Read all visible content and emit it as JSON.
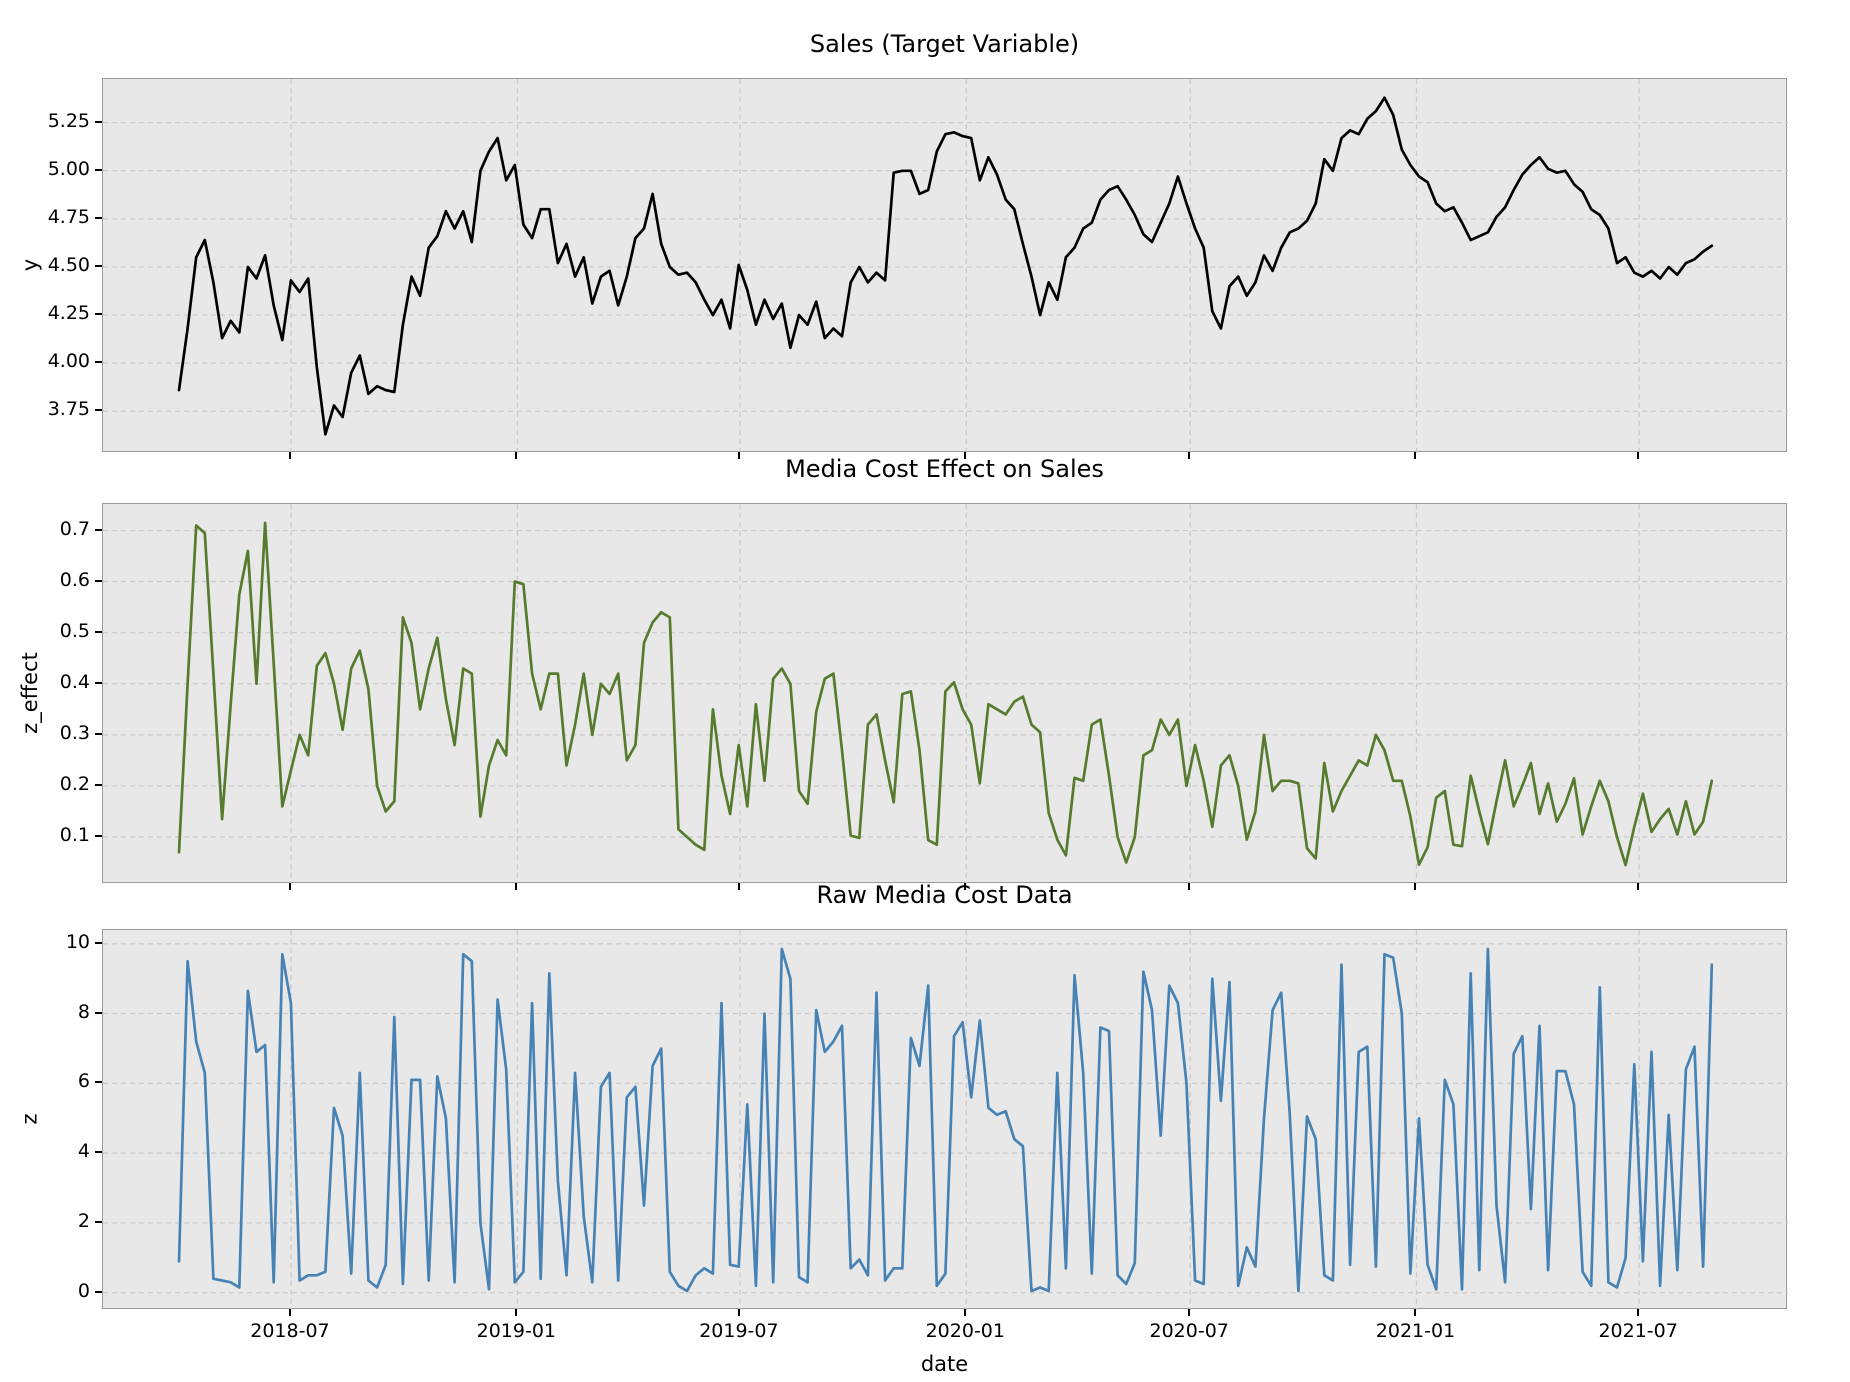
{
  "x_axis": {
    "label": "date",
    "tick_labels": [
      "2018-07",
      "2019-01",
      "2019-07",
      "2020-01",
      "2020-07",
      "2021-01",
      "2021-07"
    ],
    "tick_positions_weeks": [
      13.0,
      39.29,
      65.14,
      91.43,
      117.43,
      143.71,
      169.57
    ],
    "start_date": "2018-04-01",
    "end_date": "2021-08-29",
    "frequency": "weekly",
    "n_points": 179
  },
  "colors": {
    "figure_background": "#ffffff",
    "axes_background": "#e8e8e8",
    "grid": "#c8c8c8",
    "spine": "#9a9a9a",
    "tick": "#000000",
    "text": "#000000"
  },
  "chart_data": [
    {
      "type": "line",
      "name": "sales",
      "title": "Sales (Target Variable)",
      "ylabel": "y",
      "line_color": "#000000",
      "ylim": [
        3.533,
        5.477
      ],
      "yticks": [
        3.75,
        4.0,
        4.25,
        4.5,
        4.75,
        5.0,
        5.25
      ],
      "ytick_labels": [
        "3.75",
        "4.00",
        "4.25",
        "4.50",
        "4.75",
        "5.00",
        "5.25"
      ],
      "grid": true,
      "legend": "none",
      "values": [
        3.86,
        4.18,
        4.55,
        4.64,
        4.42,
        4.13,
        4.22,
        4.16,
        4.5,
        4.44,
        4.56,
        4.3,
        4.12,
        4.43,
        4.37,
        4.44,
        3.98,
        3.63,
        3.78,
        3.72,
        3.95,
        4.04,
        3.84,
        3.88,
        3.86,
        3.85,
        4.2,
        4.45,
        4.35,
        4.6,
        4.66,
        4.79,
        4.7,
        4.79,
        4.63,
        5.0,
        5.1,
        5.17,
        4.95,
        5.03,
        4.72,
        4.65,
        4.8,
        4.8,
        4.52,
        4.62,
        4.45,
        4.55,
        4.31,
        4.45,
        4.48,
        4.3,
        4.45,
        4.65,
        4.7,
        4.88,
        4.62,
        4.5,
        4.46,
        4.47,
        4.42,
        4.33,
        4.25,
        4.33,
        4.18,
        4.51,
        4.38,
        4.2,
        4.33,
        4.23,
        4.31,
        4.08,
        4.25,
        4.2,
        4.32,
        4.13,
        4.18,
        4.14,
        4.42,
        4.5,
        4.42,
        4.47,
        4.43,
        4.99,
        5.0,
        5.0,
        4.88,
        4.9,
        5.1,
        5.19,
        5.2,
        5.18,
        5.17,
        4.95,
        5.07,
        4.98,
        4.85,
        4.8,
        4.62,
        4.45,
        4.25,
        4.42,
        4.33,
        4.55,
        4.6,
        4.7,
        4.73,
        4.85,
        4.9,
        4.92,
        4.85,
        4.77,
        4.67,
        4.63,
        4.73,
        4.83,
        4.97,
        4.83,
        4.7,
        4.6,
        4.27,
        4.18,
        4.4,
        4.45,
        4.35,
        4.42,
        4.56,
        4.48,
        4.6,
        4.68,
        4.7,
        4.74,
        4.83,
        5.06,
        5.0,
        5.17,
        5.21,
        5.19,
        5.27,
        5.31,
        5.38,
        5.29,
        5.11,
        5.03,
        4.97,
        4.94,
        4.83,
        4.79,
        4.81,
        4.73,
        4.64,
        4.66,
        4.68,
        4.76,
        4.81,
        4.9,
        4.98,
        5.03,
        5.07,
        5.01,
        4.99,
        5.0,
        4.93,
        4.89,
        4.8,
        4.77,
        4.7,
        4.52,
        4.55,
        4.47,
        4.45,
        4.48,
        4.44,
        4.5,
        4.46,
        4.52,
        4.54,
        4.58,
        4.61
      ]
    },
    {
      "type": "line",
      "name": "media_cost_effect",
      "title": "Media Cost Effect on Sales",
      "ylabel": "z_effect",
      "line_color": "#567b2e",
      "ylim": [
        0.008,
        0.752
      ],
      "yticks": [
        0.1,
        0.2,
        0.3,
        0.4,
        0.5,
        0.6,
        0.7
      ],
      "ytick_labels": [
        "0.1",
        "0.2",
        "0.3",
        "0.4",
        "0.5",
        "0.6",
        "0.7"
      ],
      "grid": true,
      "legend": "none",
      "values": [
        0.07,
        0.4,
        0.71,
        0.695,
        0.42,
        0.135,
        0.36,
        0.575,
        0.66,
        0.4,
        0.715,
        0.44,
        0.16,
        0.23,
        0.3,
        0.26,
        0.435,
        0.46,
        0.4,
        0.31,
        0.43,
        0.465,
        0.39,
        0.2,
        0.15,
        0.17,
        0.53,
        0.48,
        0.35,
        0.43,
        0.49,
        0.37,
        0.28,
        0.43,
        0.42,
        0.14,
        0.24,
        0.29,
        0.26,
        0.6,
        0.595,
        0.42,
        0.35,
        0.42,
        0.42,
        0.24,
        0.32,
        0.42,
        0.3,
        0.4,
        0.38,
        0.42,
        0.25,
        0.28,
        0.48,
        0.52,
        0.54,
        0.53,
        0.115,
        0.1,
        0.085,
        0.075,
        0.35,
        0.22,
        0.145,
        0.28,
        0.16,
        0.36,
        0.21,
        0.41,
        0.43,
        0.4,
        0.19,
        0.165,
        0.345,
        0.41,
        0.42,
        0.27,
        0.103,
        0.098,
        0.32,
        0.34,
        0.25,
        0.168,
        0.38,
        0.385,
        0.27,
        0.094,
        0.085,
        0.385,
        0.403,
        0.35,
        0.32,
        0.205,
        0.36,
        0.35,
        0.34,
        0.365,
        0.375,
        0.32,
        0.305,
        0.147,
        0.095,
        0.064,
        0.216,
        0.21,
        0.32,
        0.33,
        0.22,
        0.1,
        0.05,
        0.1,
        0.26,
        0.27,
        0.33,
        0.3,
        0.33,
        0.2,
        0.28,
        0.21,
        0.12,
        0.24,
        0.26,
        0.2,
        0.095,
        0.15,
        0.3,
        0.19,
        0.21,
        0.21,
        0.205,
        0.078,
        0.058,
        0.245,
        0.15,
        0.19,
        0.22,
        0.25,
        0.24,
        0.3,
        0.27,
        0.21,
        0.21,
        0.14,
        0.046,
        0.08,
        0.177,
        0.19,
        0.085,
        0.082,
        0.22,
        0.15,
        0.086,
        0.17,
        0.25,
        0.16,
        0.2,
        0.245,
        0.145,
        0.205,
        0.13,
        0.165,
        0.215,
        0.105,
        0.16,
        0.21,
        0.17,
        0.1,
        0.045,
        0.12,
        0.185,
        0.11,
        0.135,
        0.155,
        0.105,
        0.17,
        0.105,
        0.13,
        0.21
      ]
    },
    {
      "type": "line",
      "name": "raw_media_cost",
      "title": "Raw Media Cost Data",
      "ylabel": "z",
      "line_color": "#4682b4",
      "ylim": [
        -0.494,
        10.394
      ],
      "yticks": [
        0,
        2,
        4,
        6,
        8,
        10
      ],
      "ytick_labels": [
        "0",
        "2",
        "4",
        "6",
        "8",
        "10"
      ],
      "grid": true,
      "legend": "none",
      "values": [
        0.9,
        9.5,
        7.2,
        6.3,
        0.4,
        0.35,
        0.3,
        0.15,
        8.65,
        6.9,
        7.1,
        0.3,
        9.7,
        8.3,
        0.35,
        0.5,
        0.5,
        0.6,
        5.3,
        4.5,
        0.55,
        6.3,
        0.35,
        0.15,
        0.8,
        7.9,
        0.25,
        6.1,
        6.1,
        0.35,
        6.2,
        5.0,
        0.3,
        9.7,
        9.5,
        2.0,
        0.1,
        8.4,
        6.4,
        0.3,
        0.6,
        8.3,
        0.4,
        9.15,
        3.2,
        0.5,
        6.3,
        2.2,
        0.3,
        5.9,
        6.3,
        0.35,
        5.6,
        5.9,
        2.5,
        6.5,
        7.0,
        0.6,
        0.2,
        0.05,
        0.5,
        0.7,
        0.55,
        8.3,
        0.8,
        0.75,
        5.4,
        0.2,
        8.0,
        0.3,
        9.85,
        9.0,
        0.45,
        0.3,
        8.1,
        6.9,
        7.2,
        7.65,
        0.7,
        0.95,
        0.5,
        8.6,
        0.35,
        0.7,
        0.7,
        7.3,
        6.5,
        8.8,
        0.2,
        0.55,
        7.35,
        7.75,
        5.6,
        7.8,
        5.3,
        5.1,
        5.2,
        4.4,
        4.2,
        0.05,
        0.15,
        0.05,
        6.3,
        0.7,
        9.1,
        6.3,
        0.55,
        7.6,
        7.5,
        0.5,
        0.25,
        0.85,
        9.2,
        8.1,
        4.5,
        8.8,
        8.3,
        6.0,
        0.35,
        0.25,
        9.0,
        5.5,
        8.9,
        0.2,
        1.3,
        0.75,
        5.0,
        8.1,
        8.6,
        5.1,
        0.05,
        5.05,
        4.4,
        0.5,
        0.35,
        9.4,
        0.8,
        6.9,
        7.05,
        0.75,
        9.7,
        9.6,
        8.0,
        0.55,
        5.0,
        0.8,
        0.1,
        6.1,
        5.4,
        0.1,
        9.15,
        0.65,
        9.85,
        2.5,
        0.3,
        6.85,
        7.35,
        2.4,
        7.65,
        0.65,
        6.35,
        6.35,
        5.4,
        0.6,
        0.2,
        8.75,
        0.3,
        0.15,
        1.0,
        6.55,
        0.9,
        6.9,
        0.2,
        5.1,
        0.65,
        6.4,
        7.05,
        0.75,
        9.4
      ]
    }
  ]
}
